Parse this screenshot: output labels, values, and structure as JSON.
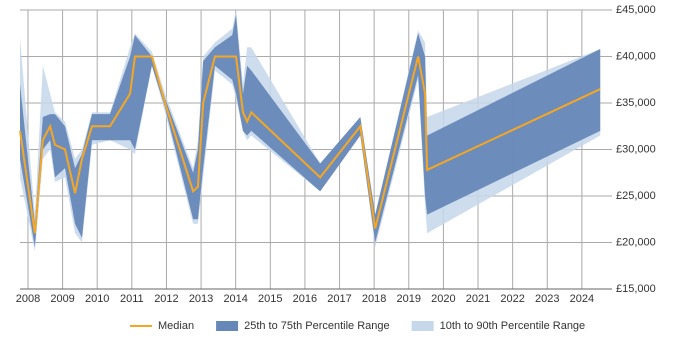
{
  "chart_data": {
    "type": "line",
    "x": [
      2007.77,
      2008.2,
      2008.43,
      2008.64,
      2008.78,
      2009.07,
      2009.36,
      2009.56,
      2009.85,
      2010.37,
      2010.95,
      2011.09,
      2011.58,
      2011.96,
      2012.77,
      2012.91,
      2013.06,
      2013.4,
      2013.9,
      2014.01,
      2014.21,
      2014.33,
      2014.45,
      2016.44,
      2017.6,
      2018.03,
      2019.27,
      2019.47,
      2019.53,
      2024.53
    ],
    "series": [
      {
        "name": "Median",
        "color": "#f5a623",
        "values": [
          32000,
          21000,
          31000,
          32500,
          30500,
          30000,
          25300,
          29000,
          32500,
          32500,
          36000,
          40000,
          40000,
          35000,
          25500,
          26000,
          35000,
          40000,
          40000,
          40000,
          34000,
          33000,
          34000,
          27000,
          32500,
          21500,
          40000,
          36000,
          27800,
          36500
        ]
      }
    ],
    "bands": [
      {
        "name": "10th to 90th Percentile Range",
        "color": "#c6d7ea",
        "lower": [
          27000,
          19000,
          29000,
          30000,
          26500,
          27000,
          21000,
          20000,
          30500,
          31000,
          30000,
          29500,
          39000,
          34000,
          22000,
          22000,
          27000,
          38500,
          37000,
          35500,
          32000,
          31000,
          31500,
          25500,
          31500,
          19500,
          37500,
          24000,
          21000,
          31500
        ],
        "upper": [
          42000,
          23000,
          39000,
          36000,
          34000,
          33000,
          29000,
          30000,
          34000,
          34000,
          41000,
          42500,
          40500,
          36000,
          28000,
          31000,
          40000,
          41500,
          43000,
          45000,
          37000,
          41000,
          41000,
          28500,
          33500,
          23000,
          42800,
          41500,
          33500,
          40800
        ]
      },
      {
        "name": "25th to 75th Percentile Range",
        "color": "#6688b8",
        "lower": [
          29000,
          19500,
          30000,
          31000,
          27000,
          28000,
          22000,
          20500,
          31000,
          31000,
          31000,
          30000,
          39000,
          34500,
          22500,
          22500,
          28000,
          39000,
          37500,
          36000,
          32000,
          31500,
          32000,
          25500,
          31500,
          20000,
          38000,
          25000,
          23000,
          32000
        ],
        "upper": [
          37000,
          22000,
          33500,
          33800,
          33800,
          32500,
          28000,
          29500,
          33800,
          33800,
          40000,
          42300,
          40000,
          35500,
          27500,
          30000,
          39500,
          41000,
          42300,
          44500,
          36000,
          39000,
          38500,
          28500,
          33500,
          23000,
          42500,
          40000,
          31500,
          40800
        ]
      }
    ],
    "xlim": [
      2007.77,
      2024.87
    ],
    "xticks": [
      2008,
      2009,
      2010,
      2011,
      2012,
      2013,
      2014,
      2015,
      2016,
      2017,
      2018,
      2019,
      2020,
      2021,
      2022,
      2023,
      2024
    ],
    "ylim": [
      15000,
      45000
    ],
    "yticks": [
      {
        "value": 15000,
        "label": "£15,000"
      },
      {
        "value": 20000,
        "label": "£20,000"
      },
      {
        "value": 25000,
        "label": "£25,000"
      },
      {
        "value": 30000,
        "label": "£30,000"
      },
      {
        "value": 35000,
        "label": "£35,000"
      },
      {
        "value": 40000,
        "label": "£40,000"
      },
      {
        "value": 45000,
        "label": "£45,000"
      }
    ],
    "grid": true
  }
}
